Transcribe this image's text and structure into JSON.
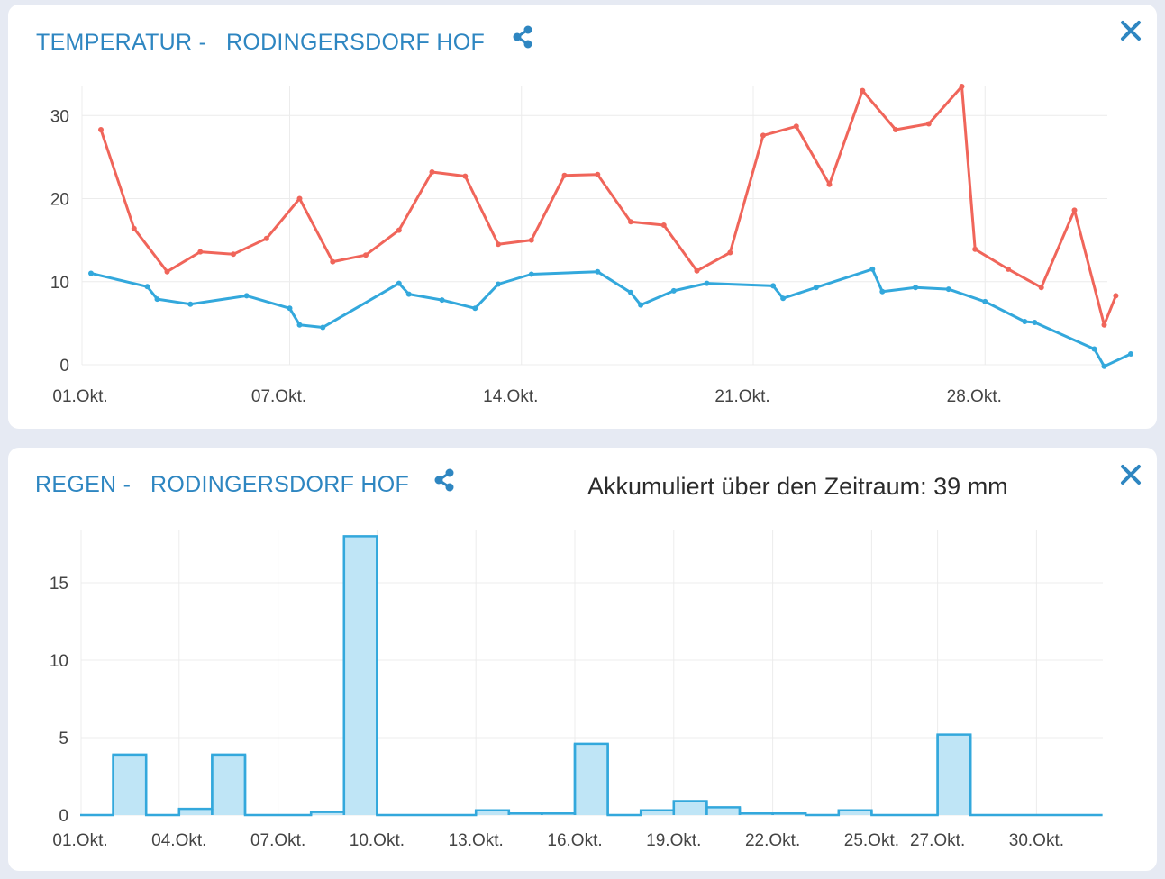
{
  "temperature": {
    "title": "TEMPERATUR -   RODINGERSDORF HOF",
    "icons": {
      "share": "share-icon",
      "close": "close-icon"
    },
    "colors": {
      "max": "#f0655a",
      "min": "#33a8dc",
      "grid": "#ececec"
    }
  },
  "rain": {
    "title": "REGEN -   RODINGERSDORF HOF",
    "accumulated": "Akkumuliert über den Zeitraum: 39 mm",
    "icons": {
      "share": "share-icon",
      "close": "close-icon"
    },
    "colors": {
      "bar_fill": "#bfe5f6",
      "bar_stroke": "#33a8dc",
      "grid": "#ececec"
    }
  },
  "chart_data": [
    {
      "type": "line",
      "title": "TEMPERATUR -   RODINGERSDORF HOF",
      "x_unit": "day of October",
      "xlim": [
        1,
        31
      ],
      "ylim": [
        0,
        35
      ],
      "yticks": [
        0,
        10,
        20,
        30
      ],
      "xticks": [
        {
          "value": 1,
          "label": "01.Okt."
        },
        {
          "value": 7,
          "label": "07.Okt."
        },
        {
          "value": 14,
          "label": "14.Okt."
        },
        {
          "value": 21,
          "label": "21.Okt."
        },
        {
          "value": 28,
          "label": "28.Okt."
        }
      ],
      "grid": true,
      "series": [
        {
          "key": "max",
          "color": "#f0655a",
          "points": [
            [
              1.3,
              28.3
            ],
            [
              2.3,
              16.4
            ],
            [
              3.3,
              11.2
            ],
            [
              4.3,
              13.6
            ],
            [
              5.3,
              13.3
            ],
            [
              6.3,
              15.2
            ],
            [
              7.3,
              20.0
            ],
            [
              8.3,
              12.4
            ],
            [
              9.3,
              13.2
            ],
            [
              10.3,
              16.2
            ],
            [
              11.3,
              23.2
            ],
            [
              12.3,
              22.7
            ],
            [
              13.3,
              14.5
            ],
            [
              14.3,
              15.0
            ],
            [
              15.3,
              22.8
            ],
            [
              16.3,
              22.9
            ],
            [
              17.3,
              17.2
            ],
            [
              18.3,
              16.8
            ],
            [
              19.3,
              11.3
            ],
            [
              20.3,
              13.5
            ],
            [
              21.3,
              27.6
            ],
            [
              22.3,
              28.7
            ],
            [
              23.3,
              21.7
            ],
            [
              24.3,
              33.0
            ],
            [
              25.3,
              28.3
            ],
            [
              26.3,
              29.0
            ],
            [
              27.3,
              33.5
            ],
            [
              27.7,
              13.9
            ],
            [
              28.7,
              11.5
            ],
            [
              29.7,
              9.3
            ],
            [
              30.7,
              18.6
            ],
            [
              31.6,
              4.8
            ],
            [
              31.95,
              8.3
            ]
          ]
        },
        {
          "key": "min",
          "color": "#33a8dc",
          "points": [
            [
              1.0,
              11.0
            ],
            [
              2.7,
              9.4
            ],
            [
              3.0,
              7.9
            ],
            [
              4.0,
              7.3
            ],
            [
              5.7,
              8.3
            ],
            [
              7.0,
              6.8
            ],
            [
              7.3,
              4.8
            ],
            [
              8.0,
              4.5
            ],
            [
              10.3,
              9.8
            ],
            [
              10.6,
              8.5
            ],
            [
              11.6,
              7.8
            ],
            [
              12.6,
              6.8
            ],
            [
              13.3,
              9.7
            ],
            [
              14.3,
              10.9
            ],
            [
              16.3,
              11.2
            ],
            [
              17.3,
              8.7
            ],
            [
              17.6,
              7.2
            ],
            [
              18.6,
              8.9
            ],
            [
              19.6,
              9.8
            ],
            [
              21.6,
              9.5
            ],
            [
              21.9,
              8.0
            ],
            [
              22.9,
              9.3
            ],
            [
              24.6,
              11.5
            ],
            [
              24.9,
              8.8
            ],
            [
              25.9,
              9.3
            ],
            [
              26.9,
              9.1
            ],
            [
              28.0,
              7.6
            ],
            [
              29.2,
              5.2
            ],
            [
              29.5,
              5.1
            ],
            [
              31.3,
              1.9
            ],
            [
              31.6,
              -0.2
            ],
            [
              32.4,
              1.3
            ]
          ]
        }
      ]
    },
    {
      "type": "bar",
      "title": "REGEN -   RODINGERSDORF HOF",
      "x_unit": "day of October",
      "ylim": [
        0,
        18.3
      ],
      "yticks": [
        0,
        5,
        10,
        15
      ],
      "xticks": [
        {
          "value": 1,
          "label": "01.Okt."
        },
        {
          "value": 4,
          "label": "04.Okt."
        },
        {
          "value": 7,
          "label": "07.Okt."
        },
        {
          "value": 10,
          "label": "10.Okt."
        },
        {
          "value": 13,
          "label": "13.Okt."
        },
        {
          "value": 16,
          "label": "16.Okt."
        },
        {
          "value": 19,
          "label": "19.Okt."
        },
        {
          "value": 22,
          "label": "22.Okt."
        },
        {
          "value": 25,
          "label": "25.Okt."
        },
        {
          "value": 27,
          "label": "27.Okt."
        },
        {
          "value": 30,
          "label": "30.Okt."
        }
      ],
      "grid": true,
      "categories": [
        1,
        2,
        3,
        4,
        5,
        6,
        7,
        8,
        9,
        10,
        11,
        12,
        13,
        14,
        15,
        16,
        17,
        18,
        19,
        20,
        21,
        22,
        23,
        24,
        25,
        26,
        27,
        28,
        29,
        30,
        31
      ],
      "values": [
        0,
        3.9,
        0,
        0.4,
        3.9,
        0,
        0,
        0.2,
        18.0,
        0,
        0,
        0,
        0.3,
        0.1,
        0.1,
        4.6,
        0,
        0.3,
        0.9,
        0.5,
        0.1,
        0.1,
        0,
        0.3,
        0,
        0,
        5.2,
        0,
        0,
        0,
        0
      ]
    }
  ]
}
